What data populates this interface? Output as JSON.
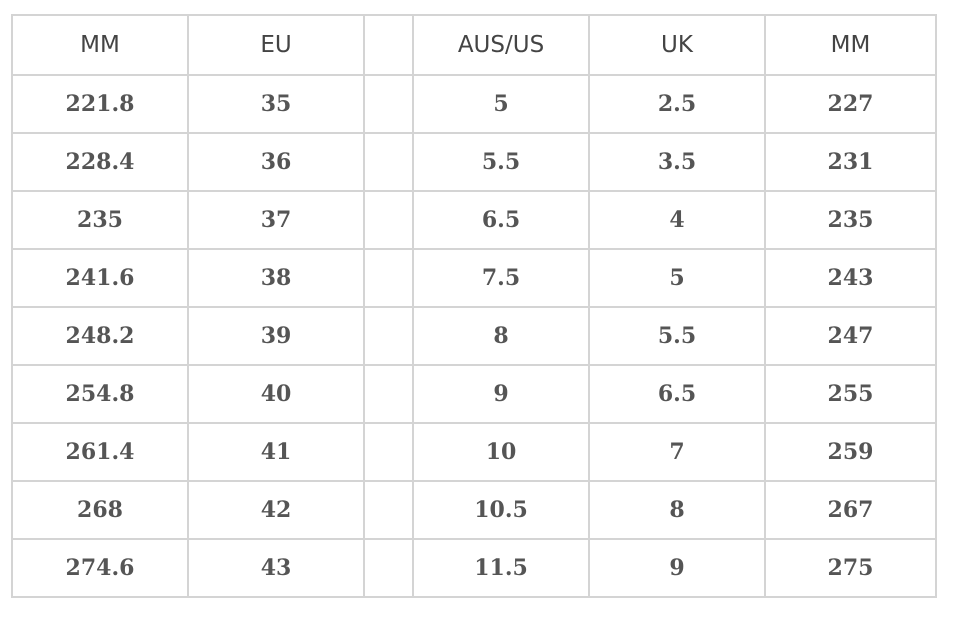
{
  "table": {
    "headers": [
      "MM",
      "EU",
      "",
      "AUS/US",
      "UK",
      "MM"
    ],
    "rows": [
      [
        "221.8",
        "35",
        "",
        "5",
        "2.5",
        "227"
      ],
      [
        "228.4",
        "36",
        "",
        "5.5",
        "3.5",
        "231"
      ],
      [
        "235",
        "37",
        "",
        "6.5",
        "4",
        "235"
      ],
      [
        "241.6",
        "38",
        "",
        "7.5",
        "5",
        "243"
      ],
      [
        "248.2",
        "39",
        "",
        "8",
        "5.5",
        "247"
      ],
      [
        "254.8",
        "40",
        "",
        "9",
        "6.5",
        "255"
      ],
      [
        "261.4",
        "41",
        "",
        "10",
        "7",
        "259"
      ],
      [
        "268",
        "42",
        "",
        "10.5",
        "8",
        "267"
      ],
      [
        "274.6",
        "43",
        "",
        "11.5",
        "9",
        "275"
      ]
    ],
    "border_color": "#d4d4d4",
    "text_color": "#555555"
  }
}
